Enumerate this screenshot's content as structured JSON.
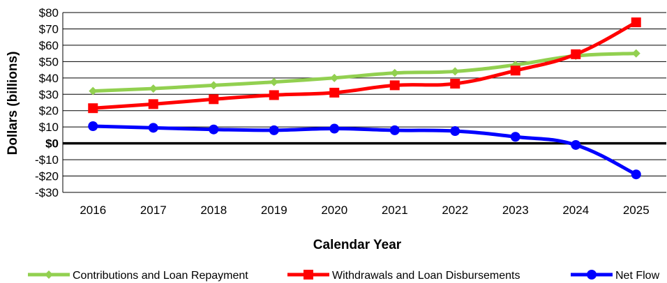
{
  "chart_data": {
    "type": "line",
    "xlabel": "Calendar Year",
    "ylabel": "Dollars (billions)",
    "categories": [
      "2016",
      "2017",
      "2018",
      "2019",
      "2020",
      "2021",
      "2022",
      "2023",
      "2024",
      "2025"
    ],
    "ylim": [
      -30,
      80
    ],
    "yticks": [
      {
        "value": 80,
        "label": "$80"
      },
      {
        "value": 70,
        "label": "$70"
      },
      {
        "value": 60,
        "label": "$60"
      },
      {
        "value": 50,
        "label": "$50"
      },
      {
        "value": 40,
        "label": "$40"
      },
      {
        "value": 30,
        "label": "$30"
      },
      {
        "value": 20,
        "label": "$20"
      },
      {
        "value": 10,
        "label": "$10"
      },
      {
        "value": 0,
        "label": "$0"
      },
      {
        "value": -10,
        "label": "-$10"
      },
      {
        "value": -20,
        "label": "-$20"
      },
      {
        "value": -30,
        "label": "-$30"
      }
    ],
    "grid": true,
    "legend_position": "bottom",
    "series": [
      {
        "name": "Contributions and Loan Repayment",
        "color": "#92d050",
        "marker": "diamond",
        "values": [
          32,
          33.5,
          35.5,
          37.5,
          40,
          43,
          44,
          48,
          53.5,
          55
        ]
      },
      {
        "name": "Withdrawals and Loan Disbursements",
        "color": "#ff0000",
        "marker": "square",
        "values": [
          21.5,
          24,
          27,
          29.5,
          31,
          35.5,
          36.5,
          44.5,
          54.5,
          74
        ]
      },
      {
        "name": "Net Flow",
        "color": "#0000ff",
        "marker": "circle",
        "values": [
          10.5,
          9.5,
          8.5,
          8,
          9,
          8,
          7.5,
          4,
          -1,
          -19
        ]
      }
    ]
  }
}
